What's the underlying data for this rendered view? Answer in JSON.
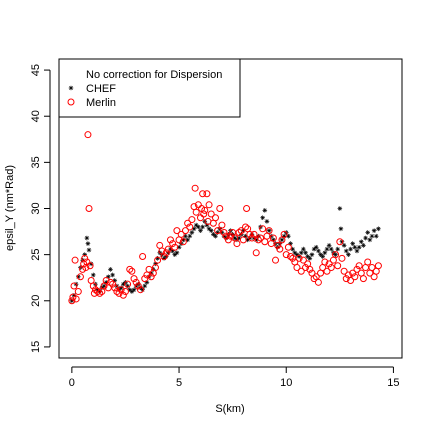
{
  "chart_data": {
    "type": "scatter",
    "title": "",
    "xlabel": "S(km)",
    "ylabel": "epsil_Y (nm*Rad)",
    "xlim": [
      -0.6,
      15.4
    ],
    "ylim": [
      13.8,
      46.2
    ],
    "xticks": [
      0,
      5,
      10,
      15
    ],
    "yticks": [
      15,
      20,
      25,
      30,
      35,
      40,
      45
    ],
    "grid": false,
    "legend": {
      "placement": "top-left",
      "title": "No correction for Dispersion",
      "entries": [
        {
          "label": "CHEF",
          "marker": "asterisk",
          "color": "#000000"
        },
        {
          "label": "Merlin",
          "marker": "open-circle",
          "color": "#ff0000"
        }
      ]
    },
    "series": [
      {
        "name": "CHEF",
        "marker": "asterisk",
        "color": "#000000",
        "points": [
          [
            0.0,
            20.0
          ],
          [
            0.1,
            20.6
          ],
          [
            0.2,
            21.8
          ],
          [
            0.3,
            22.6
          ],
          [
            0.4,
            23.6
          ],
          [
            0.5,
            24.4
          ],
          [
            0.6,
            25.0
          ],
          [
            0.7,
            26.8
          ],
          [
            0.75,
            26.2
          ],
          [
            0.8,
            25.5
          ],
          [
            0.9,
            24.0
          ],
          [
            1.0,
            22.8
          ],
          [
            1.1,
            21.8
          ],
          [
            1.2,
            21.2
          ],
          [
            1.3,
            21.0
          ],
          [
            1.4,
            21.4
          ],
          [
            1.5,
            21.6
          ],
          [
            1.6,
            22.0
          ],
          [
            1.7,
            22.6
          ],
          [
            1.8,
            23.4
          ],
          [
            1.9,
            22.8
          ],
          [
            2.0,
            22.2
          ],
          [
            2.1,
            21.6
          ],
          [
            2.2,
            21.2
          ],
          [
            2.3,
            21.4
          ],
          [
            2.4,
            21.8
          ],
          [
            2.5,
            22.0
          ],
          [
            2.6,
            21.6
          ],
          [
            2.7,
            21.2
          ],
          [
            2.8,
            21.0
          ],
          [
            2.9,
            21.2
          ],
          [
            3.0,
            21.6
          ],
          [
            3.1,
            21.8
          ],
          [
            3.2,
            21.4
          ],
          [
            3.3,
            21.2
          ],
          [
            3.4,
            21.6
          ],
          [
            3.5,
            22.0
          ],
          [
            3.6,
            22.6
          ],
          [
            3.7,
            23.0
          ],
          [
            3.8,
            23.4
          ],
          [
            3.9,
            24.0
          ],
          [
            4.0,
            24.6
          ],
          [
            4.1,
            25.2
          ],
          [
            4.2,
            25.0
          ],
          [
            4.3,
            24.6
          ],
          [
            4.4,
            24.8
          ],
          [
            4.5,
            25.2
          ],
          [
            4.6,
            25.6
          ],
          [
            4.7,
            25.4
          ],
          [
            4.8,
            25.0
          ],
          [
            4.9,
            25.2
          ],
          [
            5.0,
            25.8
          ],
          [
            5.1,
            26.2
          ],
          [
            5.2,
            26.6
          ],
          [
            5.3,
            27.0
          ],
          [
            5.4,
            26.6
          ],
          [
            5.5,
            27.0
          ],
          [
            5.6,
            27.4
          ],
          [
            5.7,
            27.8
          ],
          [
            5.8,
            28.2
          ],
          [
            5.9,
            28.0
          ],
          [
            6.0,
            27.6
          ],
          [
            6.1,
            28.0
          ],
          [
            6.2,
            28.6
          ],
          [
            6.3,
            28.2
          ],
          [
            6.4,
            27.8
          ],
          [
            6.5,
            27.6
          ],
          [
            6.6,
            27.2
          ],
          [
            6.7,
            27.0
          ],
          [
            6.8,
            27.4
          ],
          [
            6.9,
            27.8
          ],
          [
            7.0,
            27.4
          ],
          [
            7.1,
            27.0
          ],
          [
            7.2,
            26.8
          ],
          [
            7.3,
            27.2
          ],
          [
            7.4,
            27.6
          ],
          [
            7.5,
            27.2
          ],
          [
            7.6,
            26.8
          ],
          [
            7.7,
            26.6
          ],
          [
            7.8,
            26.8
          ],
          [
            7.9,
            27.2
          ],
          [
            8.0,
            27.6
          ],
          [
            8.1,
            27.0
          ],
          [
            8.2,
            26.6
          ],
          [
            8.3,
            26.8
          ],
          [
            8.4,
            27.2
          ],
          [
            8.5,
            26.8
          ],
          [
            8.6,
            26.6
          ],
          [
            8.7,
            27.0
          ],
          [
            8.8,
            28.0
          ],
          [
            8.9,
            29.0
          ],
          [
            9.0,
            29.8
          ],
          [
            9.1,
            28.6
          ],
          [
            9.2,
            27.6
          ],
          [
            9.3,
            27.0
          ],
          [
            9.4,
            26.6
          ],
          [
            9.5,
            26.2
          ],
          [
            9.6,
            25.8
          ],
          [
            9.7,
            26.2
          ],
          [
            9.8,
            26.6
          ],
          [
            9.9,
            27.0
          ],
          [
            10.0,
            27.4
          ],
          [
            10.1,
            27.0
          ],
          [
            10.2,
            26.2
          ],
          [
            10.3,
            25.6
          ],
          [
            10.4,
            25.2
          ],
          [
            10.5,
            25.0
          ],
          [
            10.6,
            24.8
          ],
          [
            10.7,
            25.2
          ],
          [
            10.8,
            25.6
          ],
          [
            10.9,
            25.2
          ],
          [
            11.0,
            24.8
          ],
          [
            11.1,
            24.6
          ],
          [
            11.2,
            25.0
          ],
          [
            11.3,
            25.6
          ],
          [
            11.4,
            25.8
          ],
          [
            11.5,
            25.4
          ],
          [
            11.6,
            25.0
          ],
          [
            11.7,
            24.8
          ],
          [
            11.8,
            25.2
          ],
          [
            11.9,
            25.6
          ],
          [
            12.0,
            26.0
          ],
          [
            12.1,
            25.6
          ],
          [
            12.2,
            25.2
          ],
          [
            12.3,
            25.0
          ],
          [
            12.4,
            25.6
          ],
          [
            12.5,
            30.0
          ],
          [
            12.55,
            27.8
          ],
          [
            12.6,
            26.4
          ],
          [
            12.7,
            26.0
          ],
          [
            12.8,
            25.4
          ],
          [
            12.9,
            25.0
          ],
          [
            13.0,
            25.6
          ],
          [
            13.1,
            26.2
          ],
          [
            13.2,
            25.8
          ],
          [
            13.3,
            25.4
          ],
          [
            13.4,
            25.8
          ],
          [
            13.5,
            26.4
          ],
          [
            13.6,
            26.0
          ],
          [
            13.7,
            26.8
          ],
          [
            13.8,
            27.4
          ],
          [
            13.9,
            26.6
          ],
          [
            14.0,
            27.0
          ],
          [
            14.1,
            27.6
          ],
          [
            14.2,
            27.0
          ],
          [
            14.3,
            27.8
          ]
        ]
      },
      {
        "name": "Merlin",
        "marker": "open-circle",
        "color": "#ff0000",
        "points": [
          [
            0.0,
            20.0
          ],
          [
            0.05,
            20.4
          ],
          [
            0.1,
            21.6
          ],
          [
            0.15,
            24.4
          ],
          [
            0.2,
            20.2
          ],
          [
            0.3,
            21.0
          ],
          [
            0.4,
            22.6
          ],
          [
            0.5,
            23.4
          ],
          [
            0.55,
            24.0
          ],
          [
            0.6,
            24.6
          ],
          [
            0.65,
            23.6
          ],
          [
            0.7,
            24.2
          ],
          [
            0.75,
            38.0
          ],
          [
            0.8,
            30.0
          ],
          [
            0.85,
            23.8
          ],
          [
            0.9,
            22.2
          ],
          [
            1.0,
            21.6
          ],
          [
            1.05,
            20.8
          ],
          [
            1.1,
            21.2
          ],
          [
            1.2,
            21.0
          ],
          [
            1.3,
            20.8
          ],
          [
            1.4,
            21.0
          ],
          [
            1.5,
            21.6
          ],
          [
            1.6,
            22.2
          ],
          [
            1.7,
            21.4
          ],
          [
            1.8,
            22.0
          ],
          [
            1.9,
            21.8
          ],
          [
            2.0,
            21.4
          ],
          [
            2.1,
            21.0
          ],
          [
            2.2,
            20.8
          ],
          [
            2.3,
            21.2
          ],
          [
            2.4,
            20.6
          ],
          [
            2.5,
            21.0
          ],
          [
            2.6,
            21.8
          ],
          [
            2.7,
            23.4
          ],
          [
            2.8,
            23.2
          ],
          [
            2.9,
            22.4
          ],
          [
            3.0,
            22.0
          ],
          [
            3.1,
            21.6
          ],
          [
            3.2,
            21.2
          ],
          [
            3.3,
            24.8
          ],
          [
            3.4,
            22.4
          ],
          [
            3.5,
            22.8
          ],
          [
            3.6,
            23.4
          ],
          [
            3.7,
            22.6
          ],
          [
            3.8,
            23.0
          ],
          [
            3.9,
            23.6
          ],
          [
            4.0,
            24.4
          ],
          [
            4.1,
            26.0
          ],
          [
            4.2,
            25.4
          ],
          [
            4.3,
            24.8
          ],
          [
            4.4,
            25.2
          ],
          [
            4.5,
            25.6
          ],
          [
            4.6,
            26.6
          ],
          [
            4.7,
            26.2
          ],
          [
            4.8,
            25.8
          ],
          [
            4.9,
            27.6
          ],
          [
            5.0,
            26.6
          ],
          [
            5.1,
            27.2
          ],
          [
            5.2,
            26.4
          ],
          [
            5.3,
            27.6
          ],
          [
            5.4,
            28.4
          ],
          [
            5.5,
            28.0
          ],
          [
            5.6,
            28.8
          ],
          [
            5.7,
            30.2
          ],
          [
            5.75,
            32.2
          ],
          [
            5.8,
            29.6
          ],
          [
            5.9,
            30.4
          ],
          [
            6.0,
            29.0
          ],
          [
            6.05,
            30.0
          ],
          [
            6.1,
            31.6
          ],
          [
            6.15,
            29.4
          ],
          [
            6.2,
            29.8
          ],
          [
            6.3,
            31.6
          ],
          [
            6.35,
            28.6
          ],
          [
            6.4,
            30.4
          ],
          [
            6.5,
            29.4
          ],
          [
            6.6,
            28.4
          ],
          [
            6.7,
            29.0
          ],
          [
            6.8,
            27.6
          ],
          [
            6.9,
            30.0
          ],
          [
            7.0,
            28.2
          ],
          [
            7.1,
            27.4
          ],
          [
            7.2,
            27.0
          ],
          [
            7.3,
            26.6
          ],
          [
            7.4,
            27.0
          ],
          [
            7.5,
            27.4
          ],
          [
            7.6,
            26.8
          ],
          [
            7.7,
            26.2
          ],
          [
            7.8,
            27.4
          ],
          [
            7.9,
            27.6
          ],
          [
            8.0,
            26.6
          ],
          [
            8.1,
            28.0
          ],
          [
            8.15,
            30.0
          ],
          [
            8.2,
            27.8
          ],
          [
            8.3,
            27.2
          ],
          [
            8.4,
            26.8
          ],
          [
            8.5,
            27.2
          ],
          [
            8.6,
            25.2
          ],
          [
            8.7,
            26.6
          ],
          [
            8.8,
            26.8
          ],
          [
            8.9,
            27.8
          ],
          [
            9.0,
            26.4
          ],
          [
            9.1,
            27.0
          ],
          [
            9.2,
            27.6
          ],
          [
            9.3,
            26.2
          ],
          [
            9.4,
            26.8
          ],
          [
            9.5,
            24.4
          ],
          [
            9.6,
            26.0
          ],
          [
            9.7,
            25.6
          ],
          [
            9.8,
            26.6
          ],
          [
            9.9,
            27.2
          ],
          [
            10.0,
            25.0
          ],
          [
            10.1,
            25.8
          ],
          [
            10.2,
            24.8
          ],
          [
            10.3,
            24.6
          ],
          [
            10.4,
            24.2
          ],
          [
            10.5,
            23.6
          ],
          [
            10.6,
            24.6
          ],
          [
            10.7,
            23.2
          ],
          [
            10.8,
            24.4
          ],
          [
            10.9,
            23.6
          ],
          [
            11.0,
            24.0
          ],
          [
            11.1,
            23.4
          ],
          [
            11.2,
            23.0
          ],
          [
            11.3,
            22.4
          ],
          [
            11.4,
            22.6
          ],
          [
            11.5,
            22.0
          ],
          [
            11.6,
            23.0
          ],
          [
            11.7,
            23.6
          ],
          [
            11.8,
            24.2
          ],
          [
            11.9,
            23.2
          ],
          [
            12.0,
            24.0
          ],
          [
            12.1,
            23.6
          ],
          [
            12.2,
            24.4
          ],
          [
            12.3,
            25.0
          ],
          [
            12.4,
            23.8
          ],
          [
            12.5,
            26.4
          ],
          [
            12.6,
            24.6
          ],
          [
            12.7,
            23.2
          ],
          [
            12.8,
            22.4
          ],
          [
            12.9,
            22.8
          ],
          [
            13.0,
            22.2
          ],
          [
            13.1,
            23.0
          ],
          [
            13.2,
            22.6
          ],
          [
            13.3,
            23.4
          ],
          [
            13.4,
            23.8
          ],
          [
            13.5,
            23.0
          ],
          [
            13.6,
            22.4
          ],
          [
            13.7,
            23.6
          ],
          [
            13.8,
            24.2
          ],
          [
            13.9,
            23.0
          ],
          [
            14.0,
            23.6
          ],
          [
            14.1,
            22.6
          ],
          [
            14.2,
            23.2
          ],
          [
            14.3,
            23.8
          ]
        ]
      }
    ]
  }
}
